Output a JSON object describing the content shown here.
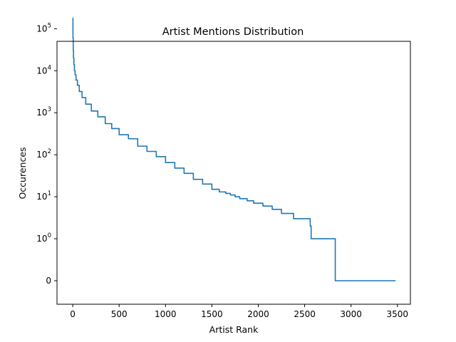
{
  "chart_data": {
    "type": "line",
    "title": "Artist Mentions Distribution",
    "xlabel": "Artist Rank",
    "ylabel": "Occurences",
    "yscale": "symlog",
    "xlim": [
      -170,
      3640
    ],
    "xticks": [
      {
        "value": 0,
        "label": "0"
      },
      {
        "value": 500,
        "label": "500"
      },
      {
        "value": 1000,
        "label": "1000"
      },
      {
        "value": 1500,
        "label": "1500"
      },
      {
        "value": 2000,
        "label": "2000"
      },
      {
        "value": 2500,
        "label": "2500"
      },
      {
        "value": 3000,
        "label": "3000"
      },
      {
        "value": 3500,
        "label": "3500"
      }
    ],
    "yticks": [
      {
        "value": 0,
        "base": "0",
        "exp": ""
      },
      {
        "value": 1,
        "base": "10",
        "exp": "0"
      },
      {
        "value": 10,
        "base": "10",
        "exp": "1"
      },
      {
        "value": 100,
        "base": "10",
        "exp": "2"
      },
      {
        "value": 1000,
        "base": "10",
        "exp": "3"
      },
      {
        "value": 10000,
        "base": "10",
        "exp": "4"
      },
      {
        "value": 100000,
        "base": "10",
        "exp": "5"
      }
    ],
    "grid": false,
    "line_color": "#1f77b4",
    "series": [
      {
        "x": [
          0,
          2,
          5,
          8,
          12,
          18,
          25,
          35,
          50,
          70,
          100,
          140,
          200,
          270,
          350,
          420,
          500,
          600,
          700,
          800,
          900,
          1000,
          1100,
          1200,
          1300,
          1400,
          1500,
          1580,
          1650,
          1700,
          1750,
          1800,
          1850,
          1880,
          1920,
          1950,
          2000,
          2050,
          2100,
          2150,
          2180,
          2250,
          2300,
          2380,
          2400,
          2560,
          2570,
          2820,
          2830,
          3480
        ],
        "y": [
          180000,
          60000,
          30000,
          20000,
          14000,
          10000,
          8000,
          6000,
          4500,
          3200,
          2300,
          1600,
          1100,
          800,
          550,
          420,
          300,
          240,
          160,
          120,
          90,
          65,
          48,
          36,
          26,
          20,
          15,
          13,
          12,
          11,
          10,
          9,
          9,
          8,
          8,
          7,
          7,
          6,
          6,
          5,
          5,
          4,
          4,
          3,
          3,
          2,
          1,
          1,
          0,
          0
        ]
      }
    ]
  }
}
